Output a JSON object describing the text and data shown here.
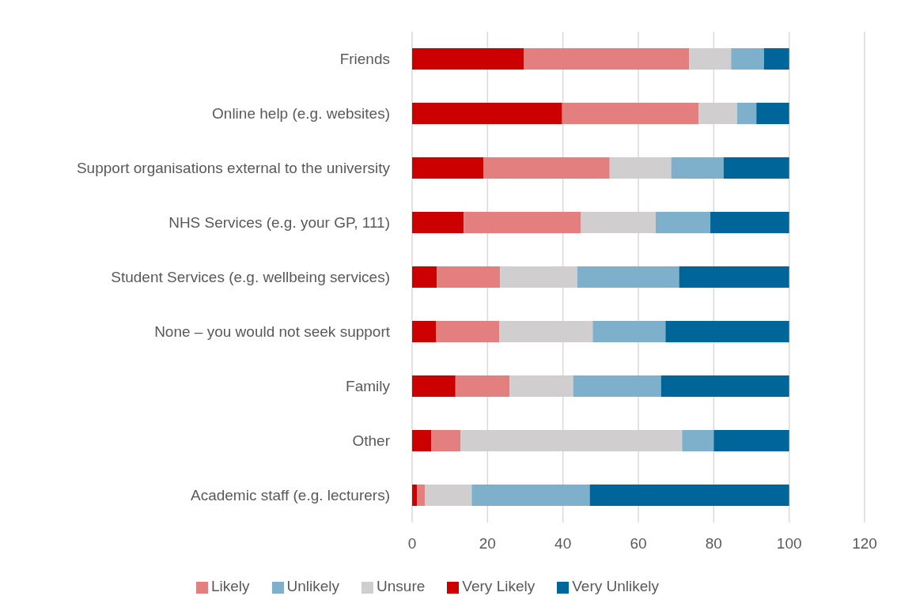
{
  "chart_data": {
    "type": "bar",
    "orientation": "horizontal",
    "stacked": true,
    "categories": [
      "Friends",
      "Online help (e.g. websites)",
      "Support organisations external to the university",
      "NHS Services (e.g. your GP, 111)",
      "Student Services (e.g. wellbeing services)",
      "None – you would not seek support",
      "Family",
      "Other",
      "Academic staff (e.g. lecturers)"
    ],
    "series": [
      {
        "name": "Very Likely",
        "color": "#cc0000",
        "values": [
          29.7,
          39.8,
          18.9,
          13.7,
          6.5,
          6.3,
          11.5,
          5.1,
          1.3
        ]
      },
      {
        "name": "Likely",
        "color": "#e47f7f",
        "values": [
          43.8,
          36.2,
          33.5,
          31.1,
          16.8,
          16.8,
          14.4,
          7.7,
          2.1
        ]
      },
      {
        "name": "Unsure",
        "color": "#d0cece",
        "values": [
          11.1,
          10.2,
          16.3,
          19.8,
          20.5,
          24.8,
          16.8,
          58.8,
          12.4
        ]
      },
      {
        "name": "Unlikely",
        "color": "#7fb0cb",
        "values": [
          8.7,
          5.1,
          13.9,
          14.5,
          27.0,
          19.3,
          23.3,
          8.4,
          31.3
        ]
      },
      {
        "name": "Very Unlikely",
        "color": "#006699",
        "values": [
          6.7,
          8.7,
          17.4,
          20.9,
          29.2,
          32.8,
          34.0,
          20.0,
          52.9
        ]
      }
    ],
    "xlim": [
      0,
      120
    ],
    "xticks": [
      0,
      20,
      40,
      60,
      80,
      100,
      120
    ],
    "grid": "x",
    "legend": "bottom"
  }
}
